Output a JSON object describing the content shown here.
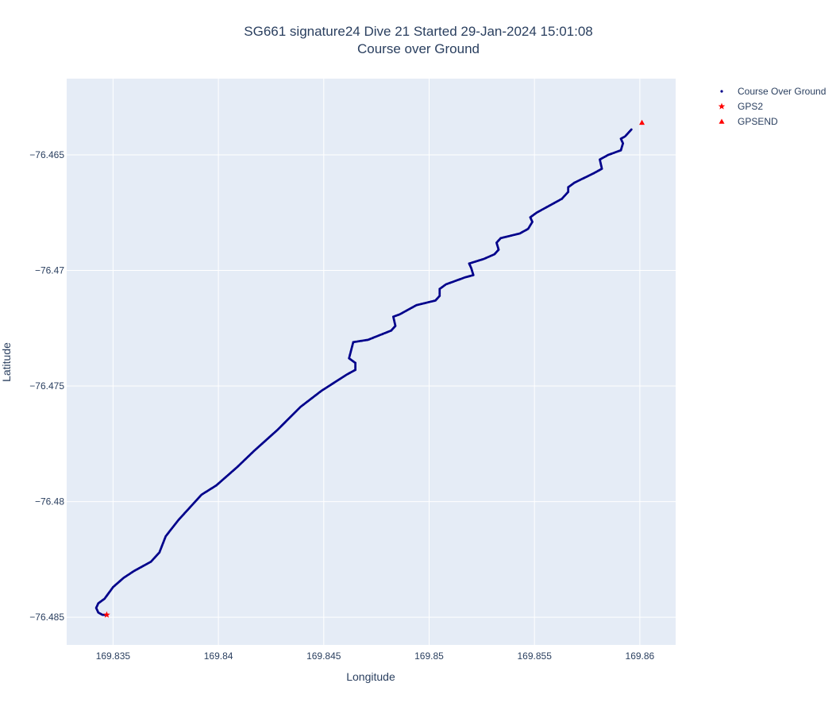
{
  "chart_data": {
    "type": "scatter",
    "title": "SG661 signature24 Dive 21 Started 29-Jan-2024 15:01:08",
    "subtitle": "Course over Ground",
    "xlabel": "Longitude",
    "ylabel": "Latitude",
    "xlim": [
      169.8328,
      169.8617
    ],
    "ylim": [
      -76.4862,
      -76.4617
    ],
    "x_ticks": [
      169.835,
      169.84,
      169.845,
      169.85,
      169.855,
      169.86
    ],
    "x_tick_labels": [
      "169.835",
      "169.84",
      "169.845",
      "169.85",
      "169.855",
      "169.86"
    ],
    "y_ticks": [
      -76.465,
      -76.47,
      -76.475,
      -76.48,
      -76.485
    ],
    "y_tick_labels": [
      "−76.465",
      "−76.47",
      "−76.475",
      "−76.48",
      "−76.485"
    ],
    "grid": true,
    "legend_position": "top-right",
    "colors": {
      "plot_background": "#e5ecf6",
      "grid": "#ffffff",
      "course_over_ground": "#00008b",
      "gps_markers": "#ff0000"
    },
    "series": [
      {
        "name": "Course Over Ground",
        "mode": "markers",
        "marker": "dot",
        "color": "#00008b",
        "path_x": [
          169.8347,
          169.8346,
          169.8345,
          169.8343,
          169.8342,
          169.8343,
          169.8346,
          169.835,
          169.8355,
          169.836,
          169.8368,
          169.8372,
          169.8375,
          169.8381,
          169.8388,
          169.8392,
          169.8399,
          169.8409,
          169.8417,
          169.8428,
          169.8439,
          169.8449,
          169.8461,
          169.8465,
          169.8465,
          169.8462,
          169.8464,
          169.8471,
          169.8482,
          169.8484,
          169.8483,
          169.8486,
          169.8494,
          169.8503,
          169.8505,
          169.8505,
          169.8508,
          169.8517,
          169.8521,
          169.852,
          169.8519,
          169.8526,
          169.8531,
          169.8533,
          169.8532,
          169.8534,
          169.8543,
          169.8547,
          169.8549,
          169.8548,
          169.8551,
          169.8563,
          169.8566,
          169.8566,
          169.8569,
          169.8578,
          169.8582,
          169.8581,
          169.8585,
          169.8591,
          169.8592,
          169.8591,
          169.8593,
          169.8596
        ],
        "path_y": [
          -76.4849,
          -76.4849,
          -76.4849,
          -76.4848,
          -76.4846,
          -76.4844,
          -76.4842,
          -76.4837,
          -76.4833,
          -76.483,
          -76.4826,
          -76.4822,
          -76.4815,
          -76.4808,
          -76.4801,
          -76.4797,
          -76.4793,
          -76.4785,
          -76.4778,
          -76.4769,
          -76.4759,
          -76.4752,
          -76.4745,
          -76.4743,
          -76.474,
          -76.4738,
          -76.4731,
          -76.473,
          -76.4726,
          -76.4724,
          -76.472,
          -76.4719,
          -76.4715,
          -76.4713,
          -76.4711,
          -76.4708,
          -76.4706,
          -76.4703,
          -76.4702,
          -76.4699,
          -76.4697,
          -76.4695,
          -76.4693,
          -76.4691,
          -76.4688,
          -76.4686,
          -76.4684,
          -76.4682,
          -76.4679,
          -76.4677,
          -76.4675,
          -76.4669,
          -76.4666,
          -76.4664,
          -76.4662,
          -76.4658,
          -76.4656,
          -76.4652,
          -76.465,
          -76.4648,
          -76.4645,
          -76.4643,
          -76.4642,
          -76.4639
        ]
      },
      {
        "name": "GPS2",
        "mode": "markers",
        "marker": "star",
        "color": "#ff0000",
        "x": [
          169.8347
        ],
        "y": [
          -76.4849
        ]
      },
      {
        "name": "GPSEND",
        "mode": "markers",
        "marker": "triangle-up",
        "color": "#ff0000",
        "x": [
          169.8601
        ],
        "y": [
          -76.4636
        ]
      }
    ]
  }
}
